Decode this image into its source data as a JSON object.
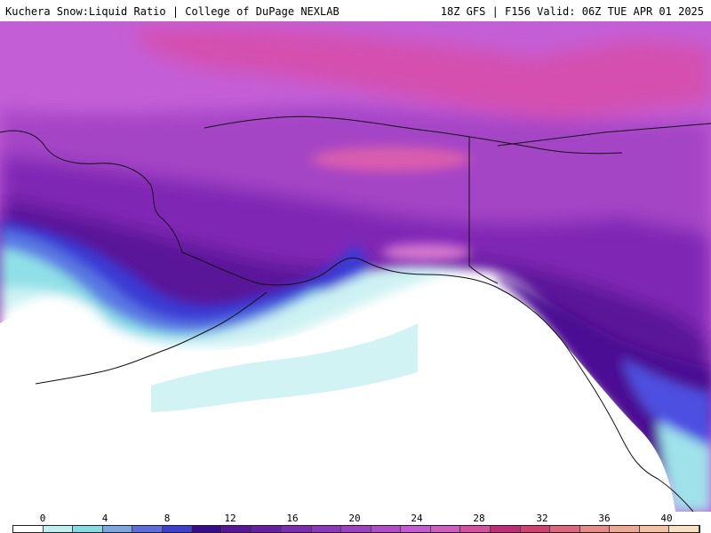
{
  "header": {
    "left": "Kuchera Snow:Liquid Ratio | College of DuPage NEXLAB",
    "right": "18Z GFS | F156 Valid: 06Z TUE APR 01 2025"
  },
  "colorbar": {
    "ticks": [
      "0",
      "4",
      "8",
      "12",
      "16",
      "20",
      "24",
      "28",
      "32",
      "36",
      "40"
    ],
    "colors": [
      "#ffffff",
      "#bdeef0",
      "#86dce4",
      "#7aa6e3",
      "#5a6ee0",
      "#3b3fd6",
      "#3a0a8c",
      "#5b1399",
      "#6a1ea6",
      "#7f2ab3",
      "#9035bd",
      "#a13fc4",
      "#b24ccc",
      "#c55ad4",
      "#cf5bc4",
      "#d6509f",
      "#c42a7a",
      "#d14070",
      "#e0667a",
      "#e88a86",
      "#f1a892",
      "#f6c2a2",
      "#fae0c0"
    ]
  },
  "map": {
    "region": "Alaska and Northeast Pacific",
    "fields": [
      {
        "name": "open-ocean",
        "color": "#ffffff"
      },
      {
        "name": "light-cyan",
        "color": "#cdf2f3"
      },
      {
        "name": "cyan",
        "color": "#8fe0e6"
      },
      {
        "name": "blue",
        "color": "#4e6ee0"
      },
      {
        "name": "indigo",
        "color": "#3e3ad4"
      },
      {
        "name": "deep-purple",
        "color": "#4b0f93"
      },
      {
        "name": "purple",
        "color": "#7a23b0"
      },
      {
        "name": "violet",
        "color": "#9b3cc2"
      },
      {
        "name": "magenta",
        "color": "#c45ed6"
      },
      {
        "name": "pink",
        "color": "#d64fa9"
      }
    ]
  }
}
